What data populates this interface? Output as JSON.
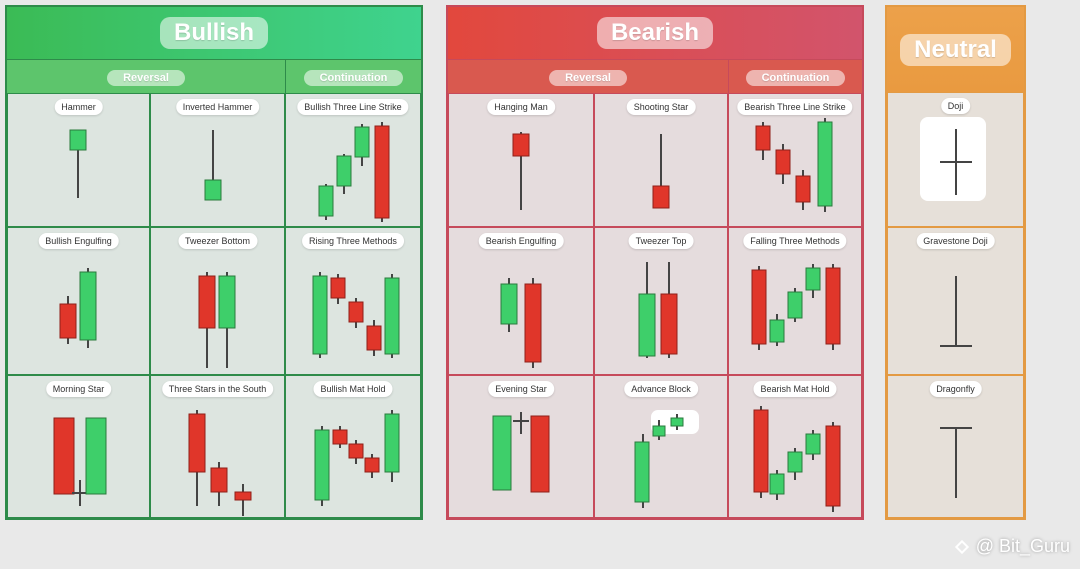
{
  "bullish": {
    "title": "Bullish",
    "reversal_label": "Reversal",
    "continuation_label": "Continuation",
    "patterns": [
      {
        "label": "Hammer"
      },
      {
        "label": "Inverted Hammer"
      },
      {
        "label": "Bullish Three Line Strike"
      },
      {
        "label": "Bullish Engulfing"
      },
      {
        "label": "Tweezer Bottom"
      },
      {
        "label": "Rising Three Methods"
      },
      {
        "label": "Morning Star"
      },
      {
        "label": "Three Stars in the South"
      },
      {
        "label": "Bullish Mat Hold"
      }
    ]
  },
  "bearish": {
    "title": "Bearish",
    "reversal_label": "Reversal",
    "continuation_label": "Continuation",
    "patterns": [
      {
        "label": "Hanging Man"
      },
      {
        "label": "Shooting Star"
      },
      {
        "label": "Bearish Three Line Strike"
      },
      {
        "label": "Bearish Engulfing"
      },
      {
        "label": "Tweezer Top"
      },
      {
        "label": "Falling Three Methods"
      },
      {
        "label": "Evening Star"
      },
      {
        "label": "Advance Block"
      },
      {
        "label": "Bearish Mat Hold"
      }
    ]
  },
  "neutral": {
    "title": "Neutral",
    "patterns": [
      {
        "label": "Doji"
      },
      {
        "label": "Gravestone Doji"
      },
      {
        "label": "Dragonfly"
      }
    ]
  },
  "colors": {
    "bull_candle": "#3ecf6a",
    "bear_candle": "#e0362a",
    "wick": "#444444"
  },
  "watermark": {
    "text": "@ Bit_Guru"
  }
}
